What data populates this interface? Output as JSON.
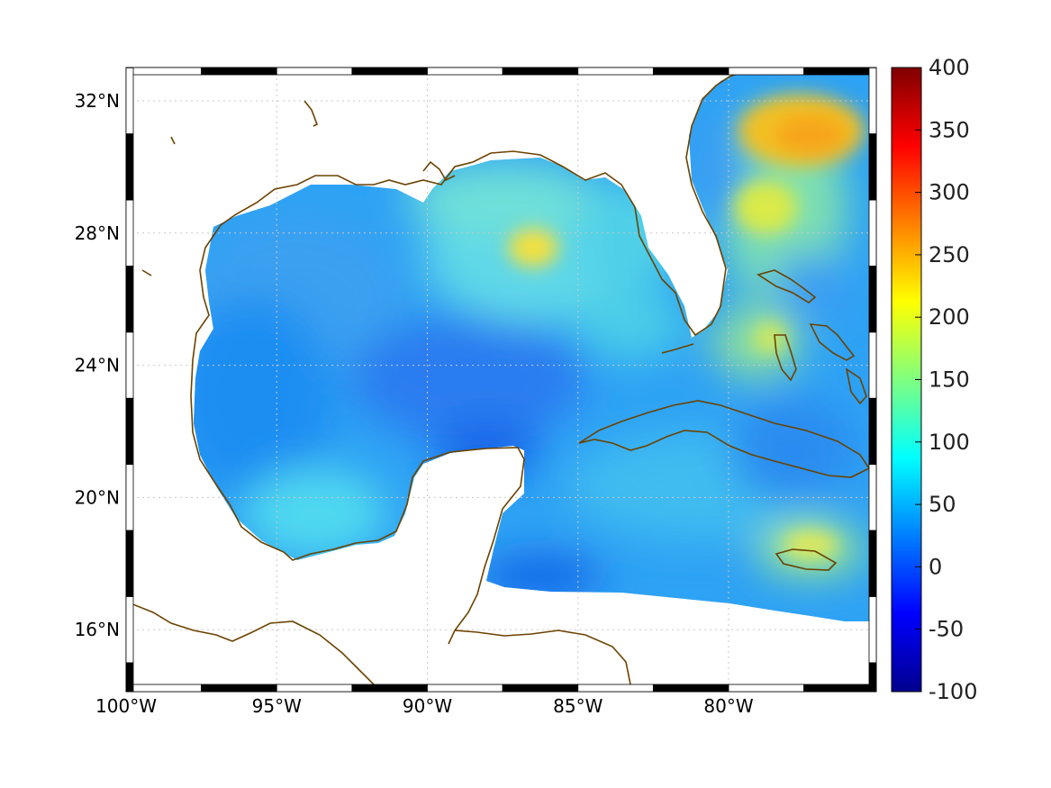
{
  "map": {
    "lon_ticks": [
      {
        "value": -100,
        "label": "100°W"
      },
      {
        "value": -95,
        "label": "95°W"
      },
      {
        "value": -90,
        "label": "90°W"
      },
      {
        "value": -85,
        "label": "85°W"
      },
      {
        "value": -80,
        "label": "80°W"
      }
    ],
    "lat_ticks": [
      {
        "value": 32,
        "label": "32°N"
      },
      {
        "value": 28,
        "label": "28°N"
      },
      {
        "value": 24,
        "label": "24°N"
      },
      {
        "value": 20,
        "label": "20°N"
      },
      {
        "value": 16,
        "label": "16°N"
      }
    ],
    "lon_range": [
      -100,
      -75
    ],
    "lat_range": [
      14.2,
      33
    ],
    "grid": true,
    "coastline_color": "#6b4200",
    "field_colormap": "jet",
    "colorbar": {
      "ticks": [
        "400",
        "350",
        "300",
        "250",
        "200",
        "150",
        "100",
        "50",
        "0",
        "-50",
        "-100"
      ],
      "range": [
        -100,
        400
      ],
      "colormap": "jet"
    }
  }
}
